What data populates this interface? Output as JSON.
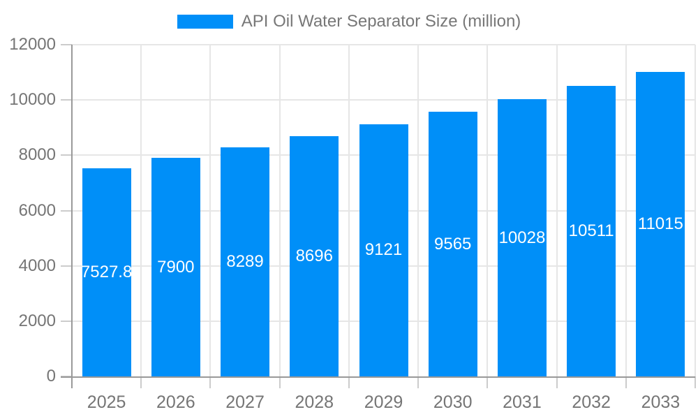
{
  "legend": {
    "label": "API Oil Water Separator Size (million)"
  },
  "chart_data": {
    "type": "bar",
    "title": "API Oil Water Separator Size (million)",
    "series_name": "API Oil Water Separator Size (million)",
    "categories": [
      "2025",
      "2026",
      "2027",
      "2028",
      "2029",
      "2030",
      "2031",
      "2032",
      "2033"
    ],
    "values": [
      7527.8,
      7900,
      8289,
      8696,
      9121,
      9565,
      10028,
      10511,
      11015
    ],
    "data_labels": [
      "7527.8",
      "7900",
      "8289",
      "8696",
      "9121",
      "9565",
      "10028",
      "10511",
      "11015"
    ],
    "xlabel": "",
    "ylabel": "",
    "ylim": [
      0,
      12000
    ],
    "yticks": [
      0,
      2000,
      4000,
      6000,
      8000,
      10000,
      12000
    ],
    "grid": true,
    "legend_position": "top-center"
  },
  "colors": {
    "bar": "#008FF8",
    "gridline": "#e6e6e6",
    "axis_line": "#999999",
    "tick": "#cccccc",
    "axis_text": "#757575",
    "legend_text": "#777777",
    "data_label_text": "#ffffff",
    "background": "#ffffff"
  }
}
